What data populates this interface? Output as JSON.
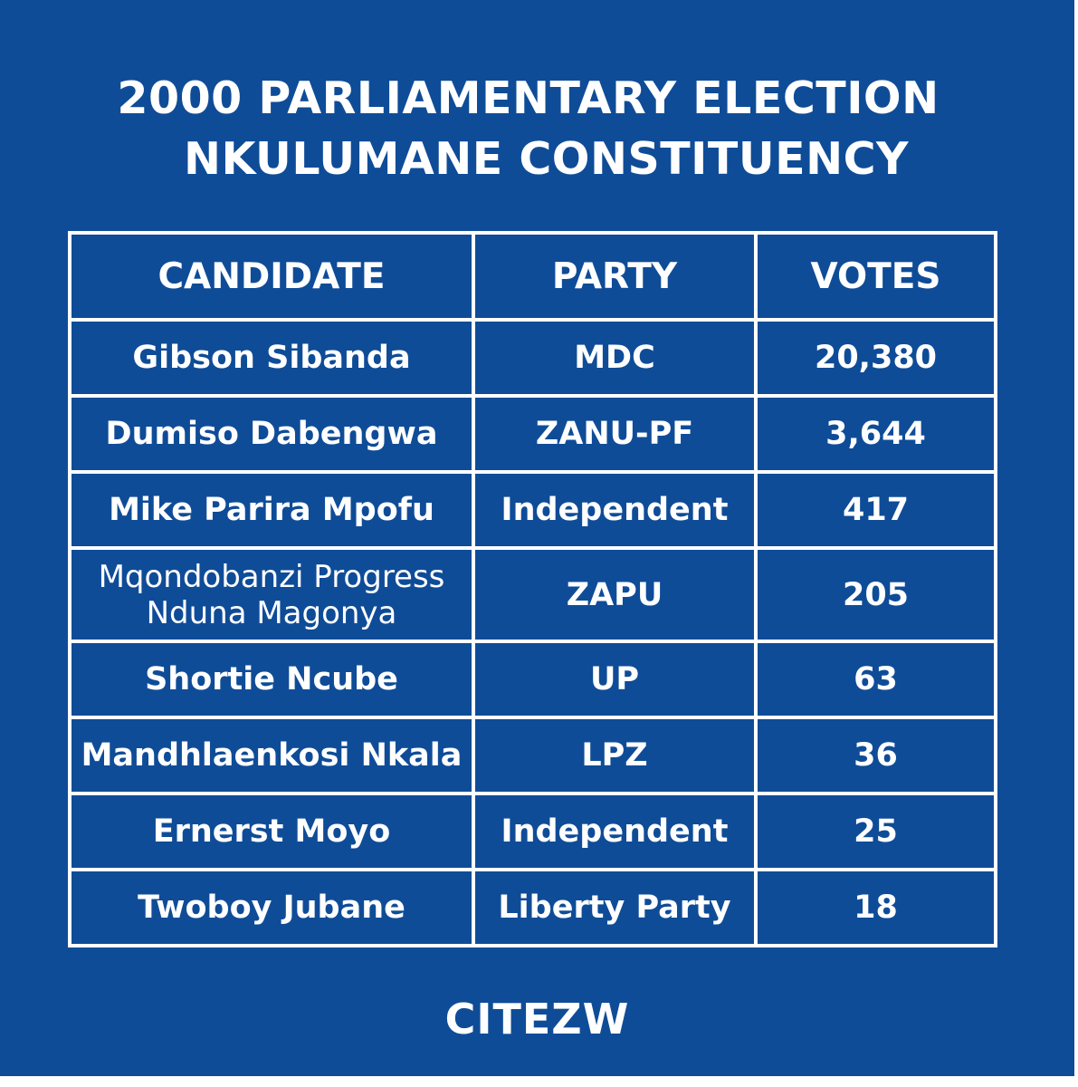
{
  "title": {
    "line1": "2000 PARLIAMENTARY ELECTION",
    "line2": "NKULUMANE CONSTITUENCY"
  },
  "table": {
    "headers": [
      "CANDIDATE",
      "PARTY",
      "VOTES"
    ],
    "rows": [
      {
        "candidate": "Gibson Sibanda",
        "party": "MDC",
        "votes": "20,380"
      },
      {
        "candidate": "Dumiso Dabengwa",
        "party": "ZANU-PF",
        "votes": "3,644"
      },
      {
        "candidate": "Mike Parira Mpofu",
        "party": "Independent",
        "votes": "417"
      },
      {
        "candidate": "Mqondobanzi Progress Nduna Magonya",
        "party": "ZAPU",
        "votes": "205"
      },
      {
        "candidate": "Shortie Ncube",
        "party": "UP",
        "votes": "63"
      },
      {
        "candidate": "Mandhlaenkosi Nkala",
        "party": "LPZ",
        "votes": "36"
      },
      {
        "candidate": "Ernerst Moyo",
        "party": "Independent",
        "votes": "25"
      },
      {
        "candidate": "Twoboy Jubane",
        "party": "Liberty Party",
        "votes": "18"
      }
    ]
  },
  "brand": "CITEZW",
  "colors": {
    "background": "#0f4c98",
    "text": "#ffffff",
    "grid": "#ffffff"
  }
}
